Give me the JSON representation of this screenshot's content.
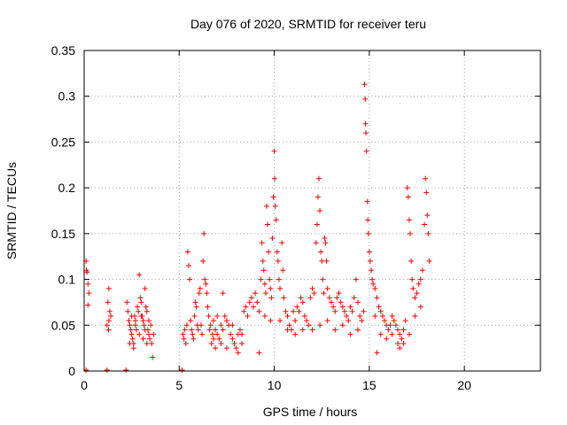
{
  "chart_data": {
    "type": "scatter",
    "title": "Day 076 of 2020, SRMTID for receiver teru",
    "xlabel": "GPS time / hours",
    "ylabel": "SRMTID / TECUs",
    "xlim": [
      0,
      24
    ],
    "ylim": [
      0,
      0.35
    ],
    "x_ticks": [
      0,
      5,
      10,
      15,
      20
    ],
    "x_tick_labels": [
      "0",
      "5",
      "10",
      "15",
      "20"
    ],
    "y_ticks": [
      0,
      0.05,
      0.1,
      0.15,
      0.2,
      0.25,
      0.3,
      0.35
    ],
    "y_tick_labels": [
      "0",
      "0.05",
      "0.1",
      "0.15",
      "0.2",
      "0.25",
      "0.3",
      "0.35"
    ],
    "grid": true,
    "marker": "plus",
    "color": "#ff0000",
    "series": [
      {
        "name": "SRMTID",
        "points": [
          [
            0.1,
            0.12
          ],
          [
            0.15,
            0.108
          ],
          [
            0.2,
            0.095
          ],
          [
            0.25,
            0.085
          ],
          [
            0.2,
            0.072
          ],
          [
            0.12,
            0.11
          ],
          [
            1.3,
            0.09
          ],
          [
            1.25,
            0.075
          ],
          [
            1.35,
            0.065
          ],
          [
            1.3,
            0.055
          ],
          [
            1.2,
            0.05
          ],
          [
            1.4,
            0.06
          ],
          [
            1.28,
            0.045
          ],
          [
            2.25,
            0.075
          ],
          [
            2.3,
            0.065
          ],
          [
            2.35,
            0.055
          ],
          [
            2.4,
            0.05
          ],
          [
            2.45,
            0.045
          ],
          [
            2.5,
            0.04
          ],
          [
            2.55,
            0.035
          ],
          [
            2.6,
            0.03
          ],
          [
            2.65,
            0.06
          ],
          [
            2.7,
            0.05
          ],
          [
            2.75,
            0.045
          ],
          [
            2.8,
            0.07
          ],
          [
            2.85,
            0.065
          ],
          [
            2.9,
            0.105
          ],
          [
            2.95,
            0.08
          ],
          [
            3.0,
            0.075
          ],
          [
            3.05,
            0.06
          ],
          [
            3.1,
            0.055
          ],
          [
            3.15,
            0.05
          ],
          [
            3.2,
            0.09
          ],
          [
            3.25,
            0.07
          ],
          [
            3.3,
            0.065
          ],
          [
            3.35,
            0.045
          ],
          [
            3.4,
            0.04
          ],
          [
            3.45,
            0.035
          ],
          [
            3.5,
            0.05
          ],
          [
            3.55,
            0.03
          ],
          [
            3.6,
            0.015
          ],
          [
            3.65,
            0.04
          ],
          [
            2.4,
            0.03
          ],
          [
            2.6,
            0.025
          ],
          [
            2.9,
            0.04
          ],
          [
            3.1,
            0.035
          ],
          [
            3.3,
            0.03
          ],
          [
            2.5,
            0.06
          ],
          [
            2.7,
            0.055
          ],
          [
            3.0,
            0.06
          ],
          [
            3.2,
            0.045
          ],
          [
            3.4,
            0.055
          ],
          [
            5.2,
            0.04
          ],
          [
            5.25,
            0.035
          ],
          [
            5.3,
            0.045
          ],
          [
            5.35,
            0.03
          ],
          [
            5.4,
            0.05
          ],
          [
            5.45,
            0.13
          ],
          [
            5.5,
            0.115
          ],
          [
            5.55,
            0.1
          ],
          [
            5.6,
            0.055
          ],
          [
            5.65,
            0.045
          ],
          [
            5.7,
            0.04
          ],
          [
            5.75,
            0.035
          ],
          [
            5.8,
            0.06
          ],
          [
            5.85,
            0.075
          ],
          [
            5.9,
            0.07
          ],
          [
            5.95,
            0.05
          ],
          [
            6.0,
            0.045
          ],
          [
            6.05,
            0.085
          ],
          [
            6.1,
            0.09
          ],
          [
            6.15,
            0.05
          ],
          [
            6.2,
            0.04
          ],
          [
            6.25,
            0.12
          ],
          [
            6.3,
            0.15
          ],
          [
            6.35,
            0.1
          ],
          [
            6.4,
            0.095
          ],
          [
            6.45,
            0.085
          ],
          [
            6.5,
            0.07
          ],
          [
            6.55,
            0.06
          ],
          [
            6.6,
            0.045
          ],
          [
            6.65,
            0.05
          ],
          [
            6.7,
            0.03
          ],
          [
            6.75,
            0.04
          ],
          [
            6.8,
            0.055
          ],
          [
            6.9,
            0.045
          ],
          [
            7.0,
            0.04
          ],
          [
            7.1,
            0.035
          ],
          [
            7.2,
            0.05
          ],
          [
            7.3,
            0.045
          ],
          [
            7.4,
            0.06
          ],
          [
            7.5,
            0.055
          ],
          [
            7.6,
            0.05
          ],
          [
            7.7,
            0.04
          ],
          [
            7.8,
            0.035
          ],
          [
            7.9,
            0.03
          ],
          [
            8.0,
            0.025
          ],
          [
            8.1,
            0.02
          ],
          [
            8.2,
            0.045
          ],
          [
            8.3,
            0.04
          ],
          [
            8.4,
            0.065
          ],
          [
            8.5,
            0.07
          ],
          [
            8.6,
            0.06
          ],
          [
            8.7,
            0.075
          ],
          [
            8.8,
            0.08
          ],
          [
            8.9,
            0.07
          ],
          [
            6.9,
            0.025
          ],
          [
            7.2,
            0.03
          ],
          [
            7.5,
            0.025
          ],
          [
            7.8,
            0.05
          ],
          [
            8.1,
            0.04
          ],
          [
            8.3,
            0.03
          ],
          [
            7.3,
            0.085
          ],
          [
            7.0,
            0.06
          ],
          [
            6.8,
            0.035
          ],
          [
            9.0,
            0.085
          ],
          [
            9.1,
            0.075
          ],
          [
            9.2,
            0.065
          ],
          [
            9.3,
            0.1
          ],
          [
            9.35,
            0.14
          ],
          [
            9.4,
            0.12
          ],
          [
            9.45,
            0.11
          ],
          [
            9.5,
            0.095
          ],
          [
            9.55,
            0.085
          ],
          [
            9.6,
            0.18
          ],
          [
            9.65,
            0.16
          ],
          [
            9.7,
            0.13
          ],
          [
            9.75,
            0.1
          ],
          [
            9.8,
            0.09
          ],
          [
            9.85,
            0.08
          ],
          [
            9.9,
            0.145
          ],
          [
            9.95,
            0.19
          ],
          [
            10.0,
            0.24
          ],
          [
            10.02,
            0.21
          ],
          [
            10.05,
            0.18
          ],
          [
            10.1,
            0.165
          ],
          [
            10.15,
            0.13
          ],
          [
            10.2,
            0.12
          ],
          [
            10.25,
            0.1
          ],
          [
            10.3,
            0.09
          ],
          [
            10.4,
            0.14
          ],
          [
            10.45,
            0.11
          ],
          [
            10.5,
            0.08
          ],
          [
            10.6,
            0.065
          ],
          [
            10.7,
            0.06
          ],
          [
            10.8,
            0.05
          ],
          [
            10.9,
            0.045
          ],
          [
            11.0,
            0.065
          ],
          [
            11.1,
            0.055
          ],
          [
            11.2,
            0.07
          ],
          [
            11.3,
            0.065
          ],
          [
            11.4,
            0.08
          ],
          [
            11.5,
            0.075
          ],
          [
            11.6,
            0.06
          ],
          [
            11.7,
            0.055
          ],
          [
            11.8,
            0.05
          ],
          [
            9.2,
            0.02
          ],
          [
            9.5,
            0.06
          ],
          [
            9.8,
            0.055
          ],
          [
            10.3,
            0.055
          ],
          [
            10.7,
            0.045
          ],
          [
            11.1,
            0.04
          ],
          [
            11.5,
            0.045
          ],
          [
            11.9,
            0.08
          ],
          [
            12.0,
            0.09
          ],
          [
            12.1,
            0.085
          ],
          [
            12.2,
            0.14
          ],
          [
            12.25,
            0.16
          ],
          [
            12.3,
            0.19
          ],
          [
            12.35,
            0.21
          ],
          [
            12.4,
            0.175
          ],
          [
            12.45,
            0.13
          ],
          [
            12.5,
            0.12
          ],
          [
            12.55,
            0.1
          ],
          [
            12.6,
            0.085
          ],
          [
            12.65,
            0.145
          ],
          [
            12.7,
            0.14
          ],
          [
            12.75,
            0.12
          ],
          [
            12.8,
            0.09
          ],
          [
            12.9,
            0.08
          ],
          [
            13.0,
            0.075
          ],
          [
            13.1,
            0.07
          ],
          [
            13.2,
            0.065
          ],
          [
            13.3,
            0.08
          ],
          [
            13.4,
            0.085
          ],
          [
            13.5,
            0.075
          ],
          [
            13.6,
            0.07
          ],
          [
            13.7,
            0.065
          ],
          [
            13.8,
            0.06
          ],
          [
            13.9,
            0.055
          ],
          [
            14.0,
            0.07
          ],
          [
            14.1,
            0.065
          ],
          [
            14.2,
            0.08
          ],
          [
            14.3,
            0.1
          ],
          [
            14.4,
            0.075
          ],
          [
            14.5,
            0.06
          ],
          [
            14.6,
            0.055
          ],
          [
            14.7,
            0.065
          ],
          [
            12.0,
            0.045
          ],
          [
            12.4,
            0.05
          ],
          [
            12.8,
            0.055
          ],
          [
            13.2,
            0.045
          ],
          [
            13.6,
            0.05
          ],
          [
            14.0,
            0.04
          ],
          [
            14.4,
            0.045
          ],
          [
            14.75,
            0.313
          ],
          [
            14.78,
            0.297
          ],
          [
            14.8,
            0.27
          ],
          [
            14.82,
            0.26
          ],
          [
            14.85,
            0.24
          ],
          [
            14.9,
            0.185
          ],
          [
            14.92,
            0.165
          ],
          [
            14.95,
            0.15
          ],
          [
            15.0,
            0.13
          ],
          [
            15.05,
            0.12
          ],
          [
            15.1,
            0.11
          ],
          [
            15.15,
            0.1
          ],
          [
            15.2,
            0.095
          ],
          [
            15.3,
            0.09
          ],
          [
            15.4,
            0.08
          ],
          [
            15.5,
            0.07
          ],
          [
            15.6,
            0.065
          ],
          [
            15.7,
            0.06
          ],
          [
            15.8,
            0.055
          ],
          [
            15.9,
            0.05
          ],
          [
            16.0,
            0.045
          ],
          [
            16.1,
            0.05
          ],
          [
            16.2,
            0.06
          ],
          [
            16.3,
            0.055
          ],
          [
            16.4,
            0.05
          ],
          [
            16.5,
            0.045
          ],
          [
            16.6,
            0.04
          ],
          [
            16.7,
            0.035
          ],
          [
            16.8,
            0.03
          ],
          [
            16.9,
            0.055
          ],
          [
            17.0,
            0.2
          ],
          [
            17.05,
            0.19
          ],
          [
            17.1,
            0.165
          ],
          [
            17.15,
            0.15
          ],
          [
            17.2,
            0.12
          ],
          [
            17.25,
            0.1
          ],
          [
            17.3,
            0.09
          ],
          [
            17.4,
            0.08
          ],
          [
            17.5,
            0.085
          ],
          [
            17.6,
            0.095
          ],
          [
            17.7,
            0.1
          ],
          [
            17.8,
            0.11
          ],
          [
            17.9,
            0.16
          ],
          [
            17.95,
            0.21
          ],
          [
            18.0,
            0.195
          ],
          [
            18.05,
            0.17
          ],
          [
            18.1,
            0.15
          ],
          [
            18.15,
            0.12
          ],
          [
            15.3,
            0.06
          ],
          [
            15.6,
            0.04
          ],
          [
            15.9,
            0.035
          ],
          [
            16.2,
            0.04
          ],
          [
            16.5,
            0.03
          ],
          [
            16.8,
            0.045
          ],
          [
            17.1,
            0.04
          ],
          [
            17.4,
            0.06
          ],
          [
            17.7,
            0.07
          ],
          [
            15.4,
            0.02
          ],
          [
            16.6,
            0.025
          ],
          [
            0.1,
            0.001
          ],
          [
            1.2,
            0.001
          ],
          [
            2.2,
            0.001
          ],
          [
            5.15,
            0.001
          ]
        ]
      }
    ]
  }
}
